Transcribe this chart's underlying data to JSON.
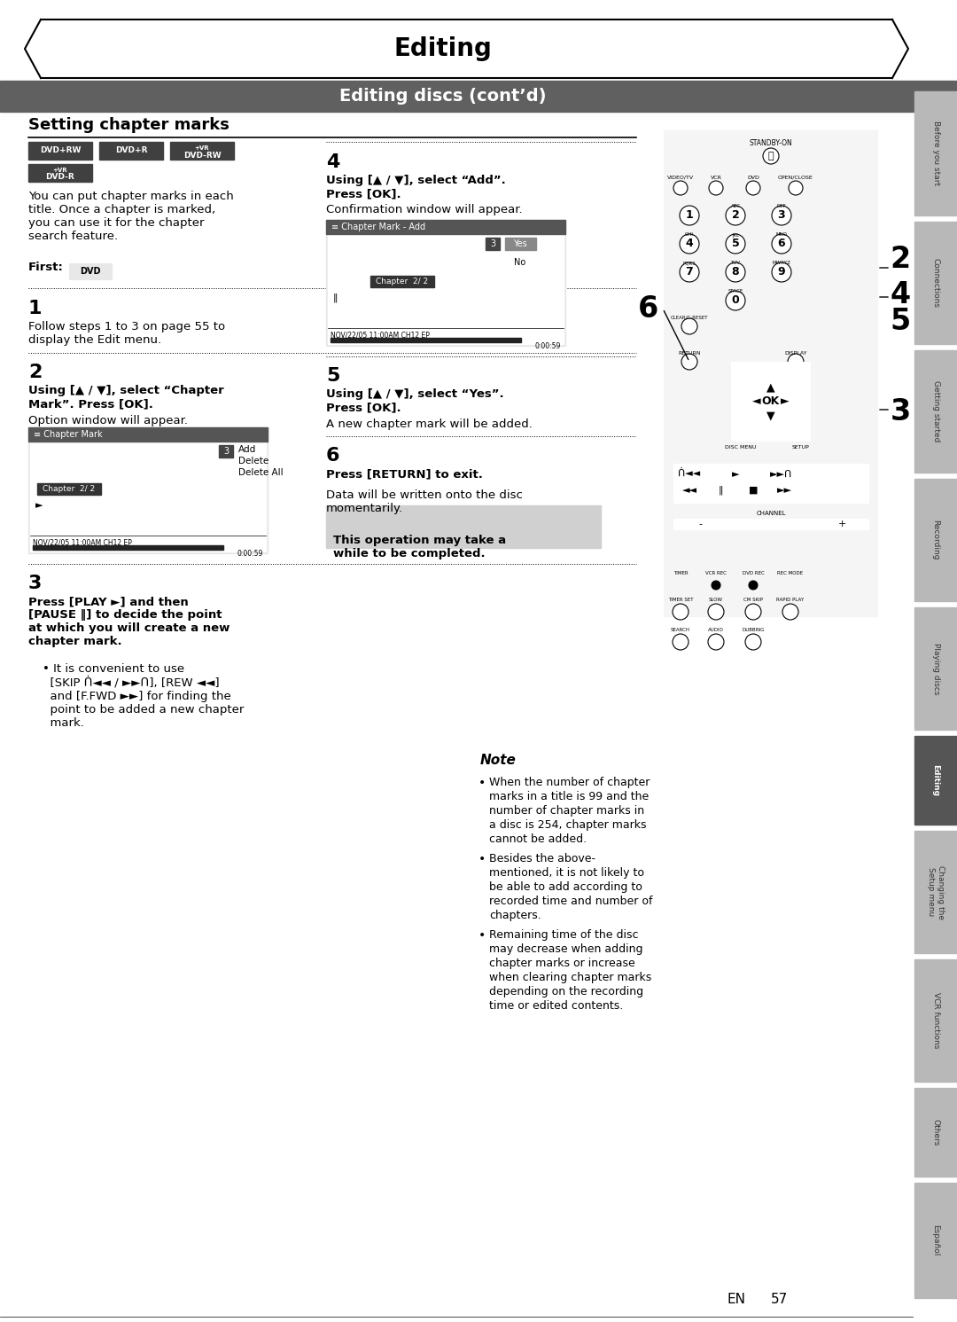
{
  "title": "Editing",
  "subtitle": "Editing discs (cont’d)",
  "section_title": "Setting chapter marks",
  "page_number": "57",
  "en_label": "EN",
  "background_color": "#ffffff",
  "subtitle_bar_color": "#606060",
  "tab_labels": [
    "Before you start",
    "Connections",
    "Getting started",
    "Recording",
    "Playing discs",
    "Editing",
    "Changing the\nSetup menu",
    "VCR functions",
    "Others",
    "Español"
  ],
  "tab_active": 5,
  "intro_text": "You can put chapter marks in each\ntitle. Once a chapter is marked,\nyou can use it for the chapter\nsearch feature.",
  "first_label": "First:",
  "step1_num": "1",
  "step1_text": "Follow steps 1 to 3 on page 55 to\ndisplay the Edit menu.",
  "step2_num": "2",
  "step2_bold": "Using [▲ / ▼], select “Chapter\nMark”. Press [OK].",
  "step2_text": "Option window will appear.",
  "step3_num": "3",
  "step3_bold1": "Press [PLAY ►] and then",
  "step3_bold2": "[PAUSE ‖] to decide the point",
  "step3_bold3": "at which you will create a new",
  "step3_bold4": "chapter mark.",
  "step3_bullet": "It is convenient to use\n[SKIP ᑏ◄◄ / ►►ᑎ], [REW ◄◄]\nand [F.FWD ►►] for finding the\npoint to be added a new chapter\nmark.",
  "step4_num": "4",
  "step4_bold": "Using [▲ / ▼], select “Add”.\nPress [OK].",
  "step4_text": "Confirmation window will appear.",
  "step5_num": "5",
  "step5_bold": "Using [▲ / ▼], select “Yes”.\nPress [OK].",
  "step5_text": "A new chapter mark will be added.",
  "step6_num": "6",
  "step6_bold": "Press [RETURN] to exit.",
  "step6_text": "Data will be written onto the disc\nmomentarily.",
  "note_box_text_line1": "This operation may take a",
  "note_box_text_line2": "while to be completed.",
  "note_title": "Note",
  "note_bullet1_lines": [
    "When the number of chapter",
    "marks in a title is 99 and the",
    "number of chapter marks in",
    "a disc is 254, chapter marks",
    "cannot be added."
  ],
  "note_bullet2_lines": [
    "Besides the above-",
    "mentioned, it is not likely to",
    "be able to add according to",
    "recorded time and number of",
    "chapters."
  ],
  "note_bullet3_lines": [
    "Remaining time of the disc",
    "may decrease when adding",
    "chapter marks or increase",
    "when clearing chapter marks",
    "depending on the recording",
    "time or edited contents."
  ],
  "dvd_logos": [
    "DVD+RW",
    "DVD+R",
    "DVD-RW",
    "DVD-R"
  ],
  "label2_text": "2",
  "label3_text": "3",
  "label4_text": "4",
  "label5_text": "5",
  "label6_text": "6"
}
